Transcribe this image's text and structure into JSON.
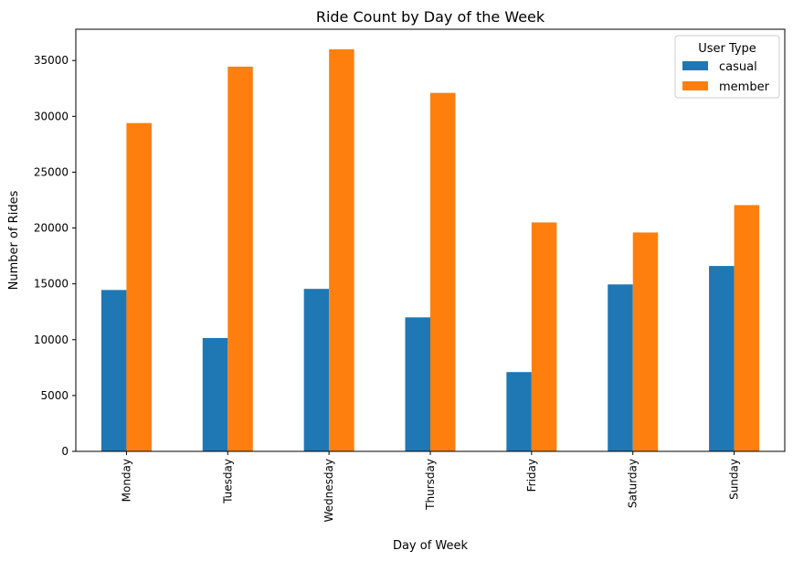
{
  "chart_data": {
    "type": "bar",
    "title": "Ride Count by Day of the Week",
    "xlabel": "Day of Week",
    "ylabel": "Number of Rides",
    "categories": [
      "Monday",
      "Tuesday",
      "Wednesday",
      "Thursday",
      "Friday",
      "Saturday",
      "Sunday"
    ],
    "series": [
      {
        "name": "casual",
        "color": "#1f77b4",
        "values": [
          14450,
          10150,
          14550,
          12000,
          7100,
          14950,
          16600
        ]
      },
      {
        "name": "member",
        "color": "#ff7f0e",
        "values": [
          29400,
          34450,
          36000,
          32100,
          20500,
          19600,
          22050
        ]
      }
    ],
    "ylim": [
      0,
      37800
    ],
    "yticks": [
      0,
      5000,
      10000,
      15000,
      20000,
      25000,
      30000,
      35000
    ],
    "legend": {
      "title": "User Type",
      "placement": "top-right"
    },
    "grid": false
  }
}
